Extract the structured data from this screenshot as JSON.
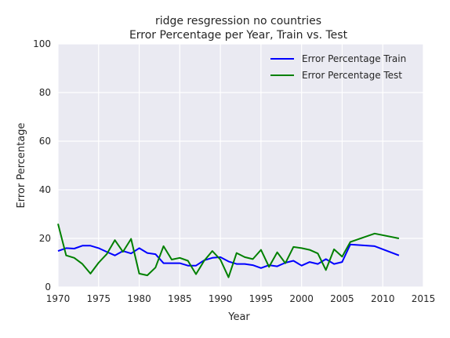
{
  "chart_data": {
    "type": "line",
    "title": "ridge resgression no countries",
    "subtitle": "Error Percentage per Year, Train vs. Test",
    "xlabel": "Year",
    "ylabel": "Error Percentage",
    "xlim": [
      1970,
      2015
    ],
    "ylim": [
      0,
      100
    ],
    "xticks": [
      "1970",
      "1975",
      "1980",
      "1985",
      "1990",
      "1995",
      "2000",
      "2005",
      "2010",
      "2015"
    ],
    "yticks": [
      "0",
      "20",
      "40",
      "60",
      "80",
      "100"
    ],
    "grid": true,
    "legend_position": "top-right",
    "series": [
      {
        "name": "Error Percentage Train",
        "color": "#0000ff",
        "x": [
          1970,
          1971,
          1972,
          1973,
          1974,
          1975,
          1976,
          1977,
          1978,
          1979,
          1980,
          1981,
          1982,
          1983,
          1984,
          1985,
          1986,
          1987,
          1988,
          1989,
          1990,
          1991,
          1992,
          1993,
          1994,
          1995,
          1996,
          1997,
          1998,
          1999,
          2000,
          2001,
          2002,
          2003,
          2004,
          2005,
          2006,
          2009,
          2012
        ],
        "y": [
          14.8,
          16.0,
          15.8,
          17.0,
          17.0,
          16.0,
          14.5,
          13.0,
          14.8,
          13.8,
          16.0,
          14.0,
          13.5,
          9.8,
          9.8,
          9.8,
          8.8,
          8.8,
          11.0,
          12.0,
          12.3,
          10.5,
          9.5,
          9.5,
          9.0,
          7.8,
          9.0,
          8.5,
          10.0,
          10.8,
          8.8,
          10.3,
          9.5,
          11.5,
          9.5,
          10.3,
          17.5,
          16.8,
          13.0
        ]
      },
      {
        "name": "Error Percentage Test",
        "color": "#008000",
        "x": [
          1970,
          1971,
          1972,
          1973,
          1974,
          1975,
          1976,
          1977,
          1978,
          1979,
          1980,
          1981,
          1982,
          1983,
          1984,
          1985,
          1986,
          1987,
          1988,
          1989,
          1990,
          1991,
          1992,
          1993,
          1994,
          1995,
          1996,
          1997,
          1998,
          1999,
          2000,
          2001,
          2002,
          2003,
          2004,
          2005,
          2006,
          2009,
          2012
        ],
        "y": [
          26.0,
          13.0,
          12.0,
          9.5,
          5.5,
          10.0,
          13.5,
          19.3,
          14.5,
          19.8,
          5.5,
          4.8,
          8.0,
          16.8,
          11.3,
          12.0,
          10.8,
          5.3,
          10.8,
          14.8,
          11.3,
          4.0,
          14.0,
          12.3,
          11.5,
          15.3,
          8.3,
          14.3,
          9.8,
          16.5,
          16.0,
          15.3,
          13.8,
          7.0,
          15.5,
          12.5,
          18.5,
          22.0,
          20.0
        ]
      }
    ]
  }
}
